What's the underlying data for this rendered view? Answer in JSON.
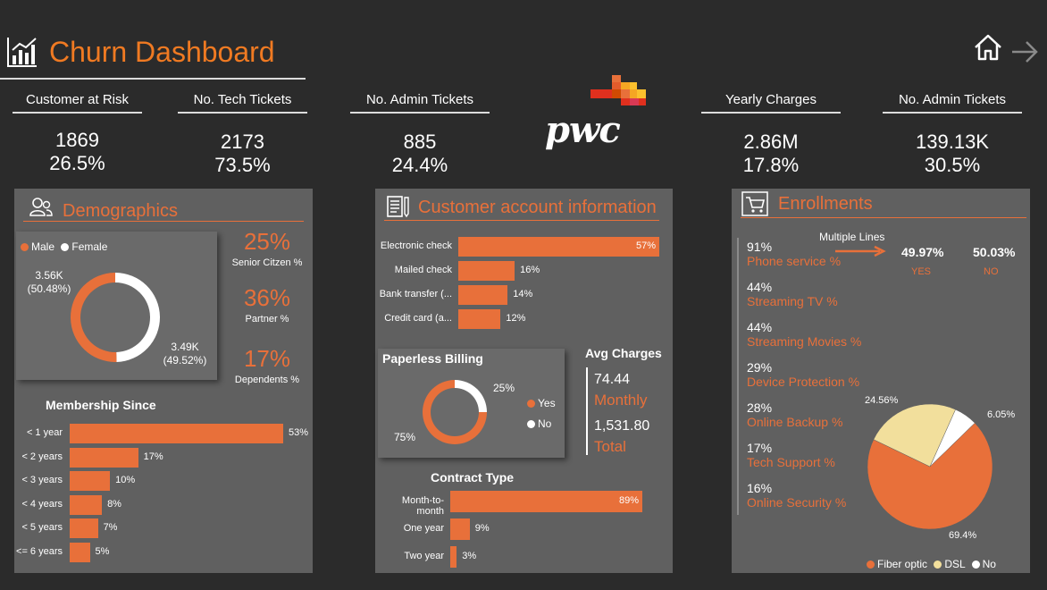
{
  "header": {
    "title": "Churn Dashboard",
    "home_icon": "home-icon",
    "forward_icon": "arrow-right-icon",
    "chart_icon": "bar-chart-icon"
  },
  "kpis": [
    {
      "label": "Customer at Risk",
      "value": "1869",
      "percent": "26.5%"
    },
    {
      "label": "No. Tech Tickets",
      "value": "2173",
      "percent": "73.5%"
    },
    {
      "label": "No. Admin Tickets",
      "value": "885",
      "percent": "24.4%"
    },
    {
      "label": "Yearly Charges",
      "value": "2.86M",
      "percent": "17.8%"
    },
    {
      "label": "No. Admin Tickets",
      "value": "139.13K",
      "percent": "30.5%"
    }
  ],
  "logo": {
    "text": "pwc"
  },
  "demographics": {
    "title": "Demographics",
    "icon": "users-icon",
    "gender": {
      "legend_male": "Male",
      "legend_female": "Female",
      "male_label": "3.56K",
      "male_pct": "(50.48%)",
      "female_label": "3.49K",
      "female_pct": "(49.52%)"
    },
    "stats": [
      {
        "value": "25%",
        "label": "Senior Citzen %"
      },
      {
        "value": "36%",
        "label": "Partner %"
      },
      {
        "value": "17%",
        "label": "Dependents %"
      }
    ],
    "membership_title": "Membership Since"
  },
  "account": {
    "title": "Customer account information",
    "icon": "document-icon",
    "paperless_title": "Paperless Billing",
    "paperless_yes_pct": "25%",
    "paperless_no_pct": "75%",
    "legend_yes": "Yes",
    "legend_no": "No",
    "avg_title": "Avg Charges",
    "monthly_value": "74.44",
    "monthly_label": "Monthly",
    "total_value": "1,531.80",
    "total_label": "Total",
    "contract_title": "Contract Type"
  },
  "enrollments": {
    "title": "Enrollments",
    "icon": "cart-icon",
    "items": [
      {
        "value": "91%",
        "label": "Phone service %"
      },
      {
        "value": "44%",
        "label": "Streaming TV %"
      },
      {
        "value": "44%",
        "label": "Streaming Movies %"
      },
      {
        "value": "29%",
        "label": "Device Protection %"
      },
      {
        "value": "28%",
        "label": "Online Backup %"
      },
      {
        "value": "17%",
        "label": "Tech Support %"
      },
      {
        "value": "16%",
        "label": "Online Security %"
      }
    ],
    "multiple_lines_label": "Multiple Lines",
    "multiple_yes_value": "49.97%",
    "multiple_yes_label": "YES",
    "multiple_no_value": "50.03%",
    "multiple_no_label": "NO",
    "internet_legend": [
      "Fiber optic",
      "DSL",
      "No"
    ],
    "internet_labels": {
      "fiber": "69.4%",
      "dsl": "24.56%",
      "no": "6.05%"
    }
  },
  "chart_data": [
    {
      "type": "pie",
      "title": "",
      "categories": [
        "Male",
        "Female"
      ],
      "values": [
        50.48,
        49.52
      ],
      "colors": [
        "#e8703a",
        "#ffffff"
      ]
    },
    {
      "type": "bar",
      "title": "Membership Since",
      "categories": [
        "< 1 year",
        "< 2 years",
        "< 3 years",
        "< 4 years",
        "< 5 years",
        "<= 6 years"
      ],
      "values": [
        53,
        17,
        10,
        8,
        7,
        5
      ],
      "value_labels": [
        "53%",
        "17%",
        "10%",
        "8%",
        "7%",
        "5%"
      ]
    },
    {
      "type": "bar",
      "title": "",
      "categories": [
        "Electronic check",
        "Mailed check",
        "Bank transfer (...",
        "Credit card (a..."
      ],
      "values": [
        57,
        16,
        14,
        12
      ],
      "value_labels": [
        "57%",
        "16%",
        "14%",
        "12%"
      ]
    },
    {
      "type": "pie",
      "title": "Paperless Billing",
      "categories": [
        "Yes",
        "No"
      ],
      "values": [
        25,
        75
      ],
      "colors": [
        "#ffffff",
        "#e8703a"
      ]
    },
    {
      "type": "bar",
      "title": "Contract Type",
      "categories": [
        "Month-to-month",
        "One year",
        "Two year"
      ],
      "values": [
        89,
        9,
        3
      ],
      "value_labels": [
        "89%",
        "9%",
        "3%"
      ]
    },
    {
      "type": "pie",
      "title": "",
      "categories": [
        "Fiber optic",
        "DSL",
        "No"
      ],
      "values": [
        69.4,
        24.56,
        6.05
      ],
      "colors": [
        "#e8703a",
        "#f2df9c",
        "#ffffff"
      ]
    }
  ]
}
